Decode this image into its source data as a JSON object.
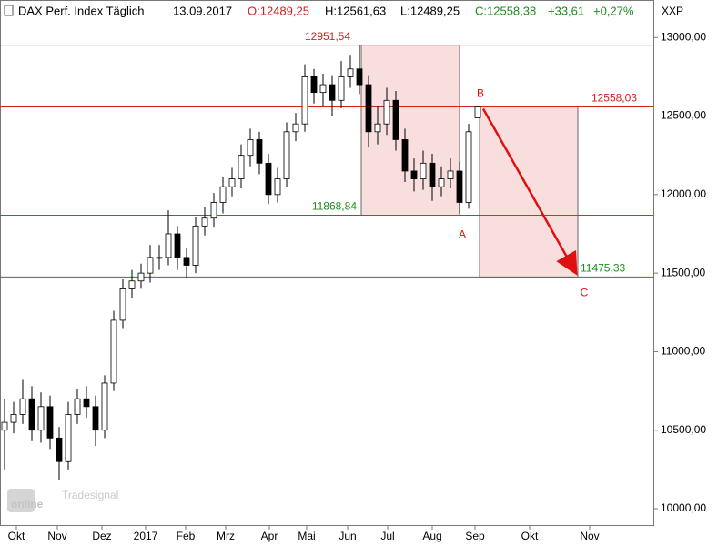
{
  "chart_data": {
    "type": "candlestick",
    "header": {
      "symbol": "DAX Perf. Index Täglich",
      "date": "13.09.2017",
      "open": "O:12489,25",
      "high": "H:12561,63",
      "low": "L:12489,25",
      "close": "C:12558,38",
      "change": "+33,61",
      "change_pct": "+0,27%"
    },
    "y_axis_label": "XXP",
    "logo": {
      "brand": "Tradesignal",
      "name": "online"
    },
    "x": [
      0.5,
      1.5,
      2.5,
      3.5,
      4.5,
      5.5,
      6.5,
      7.5,
      8.5,
      9.5,
      10.5,
      11.5,
      12.5,
      13.5,
      14.5,
      15.5,
      16.5,
      17.5,
      18.5,
      19.5,
      20.5,
      21.5,
      22.5,
      23.5,
      24.5,
      25.5,
      26.5,
      27.5,
      28.5,
      29.5,
      30.5,
      31.5,
      32.5,
      33.5,
      34.5,
      35.5,
      36.5,
      37.5,
      38.5,
      39.5,
      40.5,
      41.5,
      42.5,
      43.5,
      44.5,
      45.5,
      46.5,
      47.5,
      48.5,
      49.5,
      50.5,
      51.5,
      52.5
    ],
    "open": [
      10500,
      10550,
      10600,
      10700,
      10500,
      10650,
      10450,
      10300,
      10600,
      10700,
      10650,
      10500,
      10800,
      11200,
      11400,
      11450,
      11500,
      11600,
      11600,
      11750,
      11600,
      11550,
      11800,
      11850,
      11950,
      12050,
      12100,
      12250,
      12350,
      12200,
      12000,
      12100,
      12400,
      12450,
      12750,
      12650,
      12700,
      12600,
      12750,
      12800,
      12700,
      12400,
      12450,
      12600,
      12350,
      12150,
      12100,
      12200,
      12050,
      12100,
      12150,
      11950,
      12489.25
    ],
    "high": [
      10700,
      10680,
      10820,
      10780,
      10740,
      10720,
      10520,
      10680,
      10760,
      10780,
      10720,
      10850,
      11260,
      11460,
      11520,
      11560,
      11680,
      11680,
      11900,
      11800,
      11660,
      11860,
      11920,
      12010,
      12110,
      12170,
      12320,
      12420,
      12400,
      12260,
      12170,
      12460,
      12520,
      12830,
      12800,
      12770,
      12760,
      12850,
      12890,
      12950,
      12760,
      12560,
      12680,
      12660,
      12420,
      12230,
      12280,
      12260,
      12180,
      12230,
      12210,
      12450,
      12561.63
    ],
    "low": [
      10250,
      10480,
      10540,
      10430,
      10420,
      10380,
      10180,
      10250,
      10540,
      10580,
      10400,
      10450,
      10750,
      11150,
      11340,
      11400,
      11440,
      11520,
      11550,
      11520,
      11470,
      11500,
      11740,
      11790,
      11880,
      11990,
      12040,
      12180,
      12130,
      11940,
      11950,
      12050,
      12340,
      12400,
      12580,
      12560,
      12500,
      12550,
      12680,
      12640,
      12300,
      12320,
      12380,
      12280,
      12080,
      12020,
      12030,
      11960,
      11990,
      12040,
      11880,
      11910,
      12489.25
    ],
    "close": [
      10550,
      10600,
      10700,
      10500,
      10650,
      10450,
      10300,
      10600,
      10700,
      10650,
      10500,
      10800,
      11200,
      11400,
      11450,
      11500,
      11600,
      11600,
      11750,
      11600,
      11550,
      11800,
      11850,
      11950,
      12050,
      12100,
      12250,
      12350,
      12200,
      12000,
      12100,
      12400,
      12450,
      12750,
      12650,
      12700,
      12600,
      12750,
      12800,
      12700,
      12400,
      12450,
      12600,
      12350,
      12150,
      12100,
      12200,
      12050,
      12100,
      12150,
      11950,
      12400,
      12558.38
    ],
    "up_color": "#ffffff",
    "down_color": "#000000",
    "levels": [
      {
        "value": 12951.54,
        "label": "12951,54",
        "color": "#d62020"
      },
      {
        "value": 12558.03,
        "label": "12558,03",
        "color": "#d62020"
      },
      {
        "value": 11868.84,
        "label": "11868,84",
        "color": "#1f8a1f"
      },
      {
        "value": 11475.33,
        "label": "11475,33",
        "color": "#1f8a1f"
      }
    ],
    "wave_labels": [
      "A",
      "B",
      "C"
    ],
    "xlim": [
      0,
      71.8
    ],
    "ylim": [
      9890,
      13100
    ],
    "yticks": [
      {
        "value": 10000,
        "label": "10000,00"
      },
      {
        "value": 10500,
        "label": "10500,00"
      },
      {
        "value": 11000,
        "label": "11000,00"
      },
      {
        "value": 11500,
        "label": "11500,00"
      },
      {
        "value": 12000,
        "label": "12000,00"
      },
      {
        "value": 12500,
        "label": "12500,00"
      },
      {
        "value": 13000,
        "label": "13000,00"
      }
    ],
    "xticks": [
      {
        "value": 1.8,
        "label": "Okt"
      },
      {
        "value": 6.3,
        "label": "Nov"
      },
      {
        "value": 11.2,
        "label": "Dez"
      },
      {
        "value": 16.0,
        "label": "2017"
      },
      {
        "value": 20.4,
        "label": "Feb"
      },
      {
        "value": 24.8,
        "label": "Mrz"
      },
      {
        "value": 29.6,
        "label": "Apr"
      },
      {
        "value": 33.7,
        "label": "Mai"
      },
      {
        "value": 38.2,
        "label": "Jun"
      },
      {
        "value": 42.6,
        "label": "Jul"
      },
      {
        "value": 47.5,
        "label": "Aug"
      },
      {
        "value": 52.2,
        "label": "Sep"
      },
      {
        "value": 58.2,
        "label": "Okt"
      },
      {
        "value": 64.8,
        "label": "Nov"
      }
    ]
  }
}
